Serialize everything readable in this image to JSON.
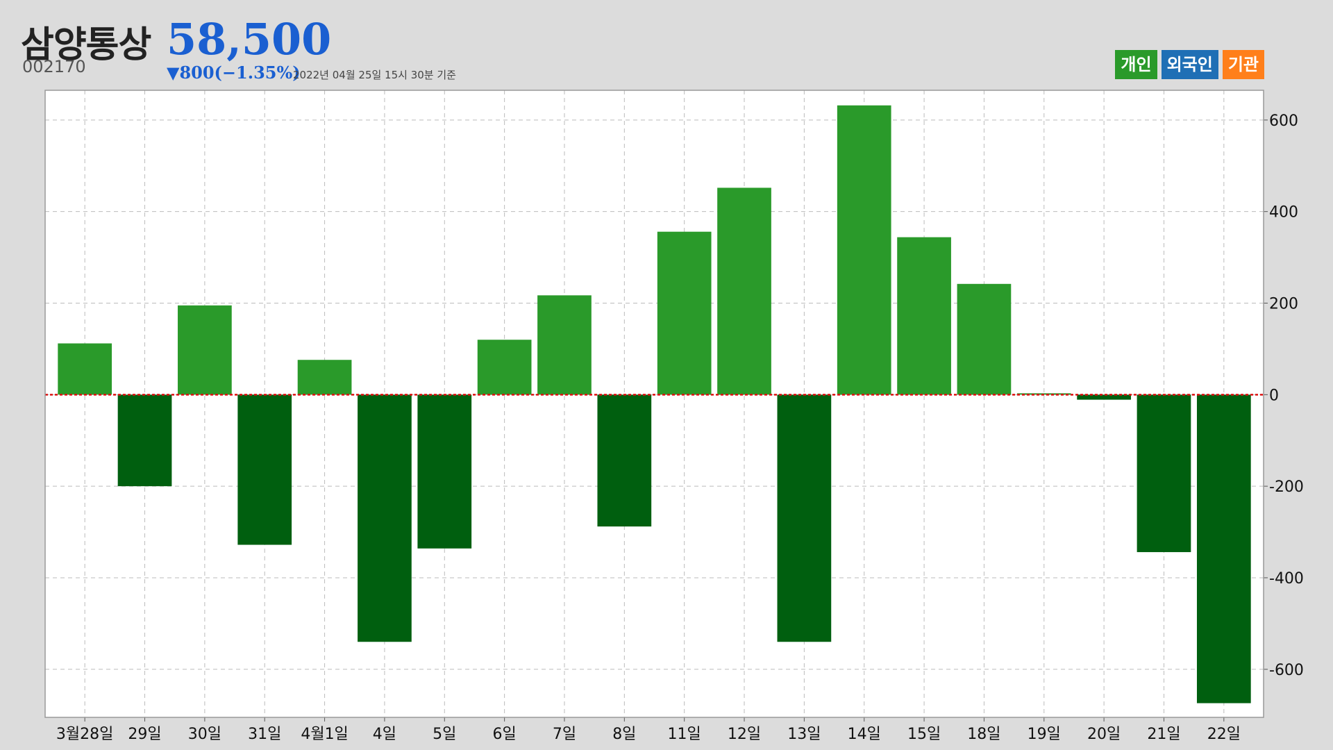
{
  "header": {
    "name": "삼양통상",
    "price": "58,500",
    "code": "002170",
    "change": "▼800(−1.35%)",
    "timestamp": "2022년 04월 25일 15시 30분 기준"
  },
  "legend": [
    {
      "label": "개인",
      "color": "#2a9a2a"
    },
    {
      "label": "외국인",
      "color": "#1f6fb5"
    },
    {
      "label": "기관",
      "color": "#ff7f1a"
    }
  ],
  "colors": {
    "positive": "#2a9a2a",
    "negative": "#005f0f",
    "zero_line": "#dd1111",
    "grid": "#bbbbbb",
    "plot_bg": "#ffffff"
  },
  "chart_data": {
    "type": "bar",
    "title": "",
    "xlabel": "",
    "ylabel": "",
    "categories": [
      "3월28일",
      "29일",
      "30일",
      "31일",
      "4월1일",
      "4일",
      "5일",
      "6일",
      "7일",
      "8일",
      "11일",
      "12일",
      "13일",
      "14일",
      "15일",
      "18일",
      "19일",
      "20일",
      "21일",
      "22일"
    ],
    "series": [
      {
        "name": "개인",
        "values": [
          112,
          -200,
          195,
          -328,
          76,
          -540,
          -336,
          120,
          217,
          -288,
          356,
          452,
          -540,
          632,
          344,
          242,
          3,
          -11,
          -344,
          -674
        ]
      }
    ],
    "ylim": [
      -705,
      665
    ],
    "yticks": [
      600,
      400,
      200,
      0,
      -200,
      -400,
      -600
    ],
    "ytick_labels": [
      "600",
      "400",
      "200",
      "0",
      "-200",
      "-400",
      "-600"
    ],
    "y_axis_position": "right",
    "grid": true,
    "legend_position": "top-right"
  }
}
